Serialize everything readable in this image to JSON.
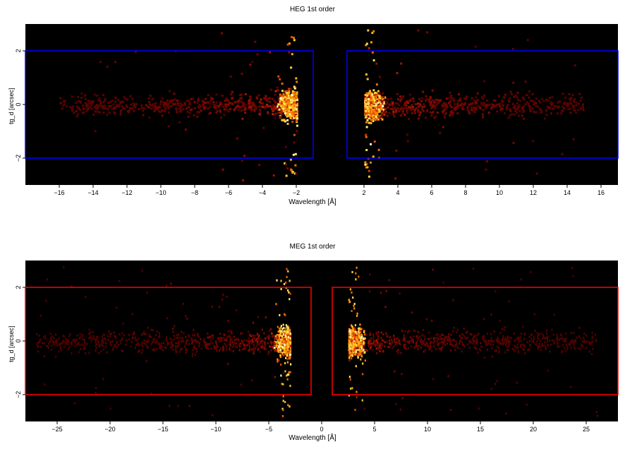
{
  "chart_data": [
    {
      "type": "heatmap",
      "title": "HEG 1st order",
      "xlabel": "Wavelength [Å]",
      "ylabel": "tg_d [arcsec]",
      "xlim": [
        -18,
        17
      ],
      "ylim": [
        -3,
        3
      ],
      "xticks": [
        -16,
        -14,
        -12,
        -10,
        -8,
        -6,
        -4,
        -2,
        2,
        4,
        6,
        8,
        10,
        12,
        14,
        16
      ],
      "xtick_labels": [
        "−16",
        "−14",
        "−12",
        "−10",
        "−8",
        "−6",
        "−4",
        "−2",
        "2",
        "4",
        "6",
        "8",
        "10",
        "12",
        "14",
        "16"
      ],
      "yticks": [
        -2,
        0,
        2
      ],
      "ytick_labels": [
        "−2",
        "0",
        "2"
      ],
      "colormap": "black-red-orange-yellow-white",
      "background": "#000000",
      "regions": [
        {
          "x": [
            -18,
            -1
          ],
          "y": [
            -2,
            2
          ]
        },
        {
          "x": [
            1,
            17
          ],
          "y": [
            -2,
            2
          ]
        }
      ],
      "region_color": "#0000ff",
      "gap": [
        -1,
        1
      ],
      "peaks": [
        -2,
        2
      ],
      "data_extent": [
        -16,
        15
      ]
    },
    {
      "type": "heatmap",
      "title": "MEG 1st order",
      "xlabel": "Wavelength [Å]",
      "ylabel": "tg_d [arcsec]",
      "xlim": [
        -28,
        28
      ],
      "ylim": [
        -3,
        3
      ],
      "xticks": [
        -25,
        -20,
        -15,
        -10,
        -5,
        0,
        5,
        10,
        15,
        20,
        25
      ],
      "xtick_labels": [
        "−25",
        "−20",
        "−15",
        "−10",
        "−5",
        "0",
        "5",
        "10",
        "15",
        "20",
        "25"
      ],
      "yticks": [
        -2,
        0,
        2
      ],
      "ytick_labels": [
        "−2",
        "0",
        "2"
      ],
      "colormap": "black-red-orange-yellow-white",
      "background": "#000000",
      "regions": [
        {
          "x": [
            -28,
            -1
          ],
          "y": [
            -2,
            2
          ]
        },
        {
          "x": [
            1,
            28
          ],
          "y": [
            -2,
            2
          ]
        }
      ],
      "region_color": "#ff0000",
      "gap": [
        -1,
        1
      ],
      "peaks": [
        -3,
        2.5
      ],
      "data_extent": [
        -27,
        26
      ]
    }
  ]
}
